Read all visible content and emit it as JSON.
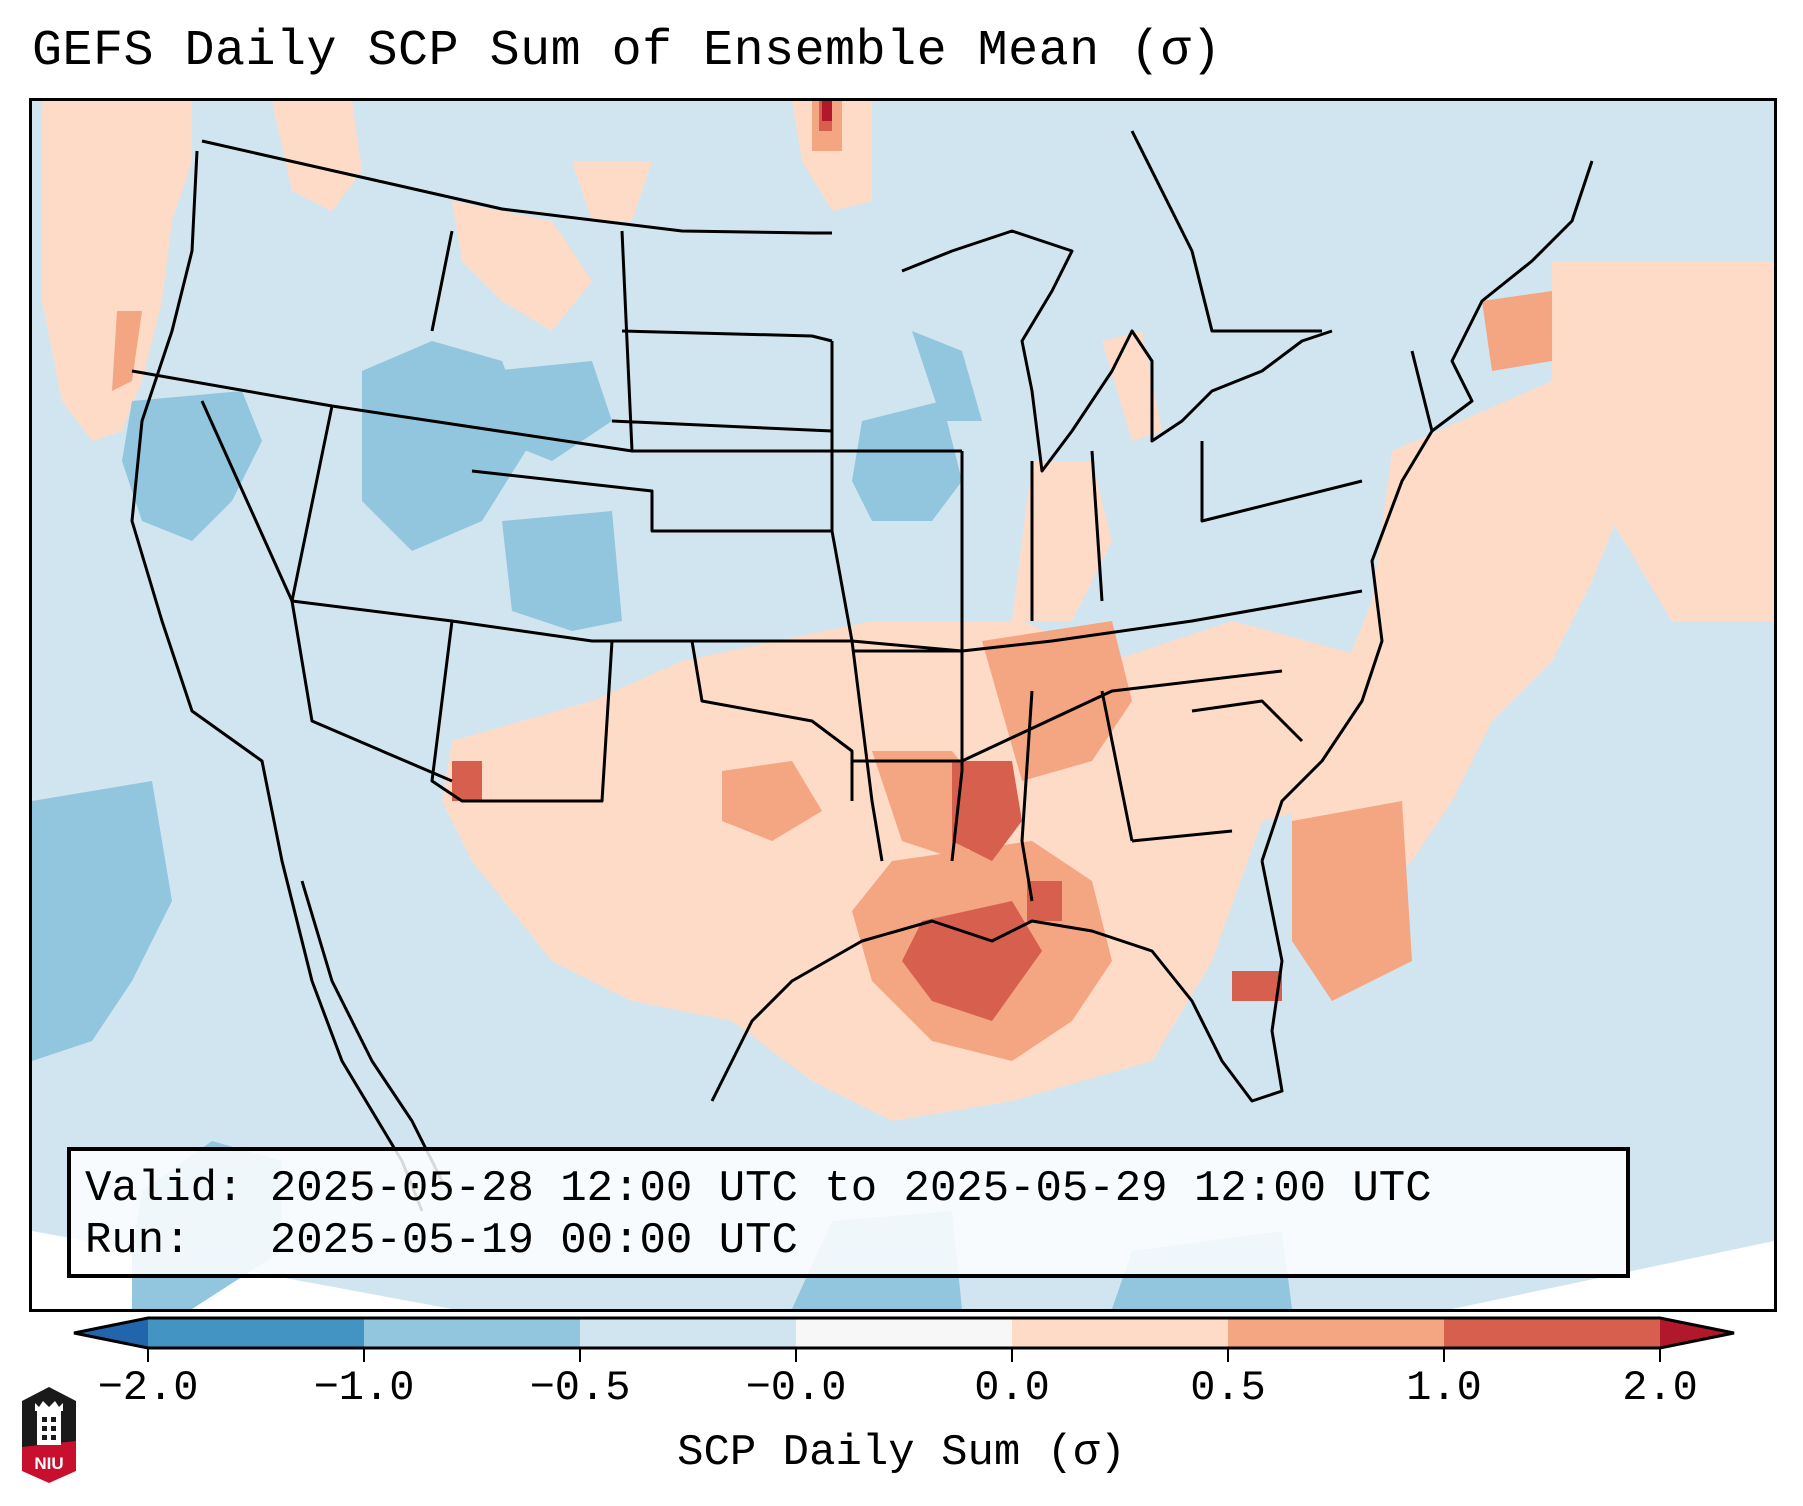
{
  "title": "GEFS Daily SCP Sum of Ensemble Mean (σ)",
  "info": {
    "valid_line": "Valid: 2025-05-28 12:00 UTC to 2025-05-29 12:00 UTC",
    "run_line": "Run:   2025-05-19 00:00 UTC"
  },
  "colorbar": {
    "label": "SCP Daily Sum (σ)",
    "tick_labels": [
      "−2.0",
      "−1.0",
      "−0.5",
      "−0.0",
      "0.0",
      "0.5",
      "1.0",
      "2.0"
    ],
    "bins": [
      {
        "range": "< -2.0",
        "color": "#2166ac",
        "extend": "min"
      },
      {
        "range": "-2.0 to -1.0",
        "color": "#4393c3"
      },
      {
        "range": "-1.0 to -0.5",
        "color": "#92c5de"
      },
      {
        "range": "-0.5 to -0.0",
        "color": "#d1e5f0"
      },
      {
        "range": "-0.0 to 0.0",
        "color": "#f7f7f7"
      },
      {
        "range": "0.0 to 0.5",
        "color": "#fddbc7"
      },
      {
        "range": "0.5 to 1.0",
        "color": "#f4a582"
      },
      {
        "range": "1.0 to 2.0",
        "color": "#d6604d"
      },
      {
        "range": "> 2.0",
        "color": "#b2182b",
        "extend": "max"
      }
    ]
  },
  "logo": {
    "name": "NIU",
    "colors": {
      "top": "#1a1a1a",
      "bottom": "#c8102e"
    }
  },
  "map": {
    "region": "Continental United States",
    "background_color": "#d1e5f0",
    "border_color": "#000000",
    "anomaly_areas": [
      {
        "area": "Gulf of Mexico / Louisiana",
        "category": "1.0 to 2.0"
      },
      {
        "area": "Mississippi / Arkansas",
        "category": "1.0 to 2.0"
      },
      {
        "area": "Southeast Atlantic coast offshore",
        "category": "0.5 to 1.0"
      },
      {
        "area": "Tennessee Valley",
        "category": "0.5 to 1.0"
      },
      {
        "area": "Southern Plains",
        "category": "0.0 to 0.5"
      },
      {
        "area": "Colorado / Wyoming",
        "category": "-1.0 to -0.5"
      },
      {
        "area": "Nevada / Utah",
        "category": "-1.0 to -0.5"
      },
      {
        "area": "Iowa",
        "category": "-1.0 to -0.5"
      },
      {
        "area": "Pacific Northwest coast",
        "category": "0.0 to 0.5"
      },
      {
        "area": "Saskatchewan/Manitoba border",
        "category": "> 2.0"
      }
    ]
  }
}
